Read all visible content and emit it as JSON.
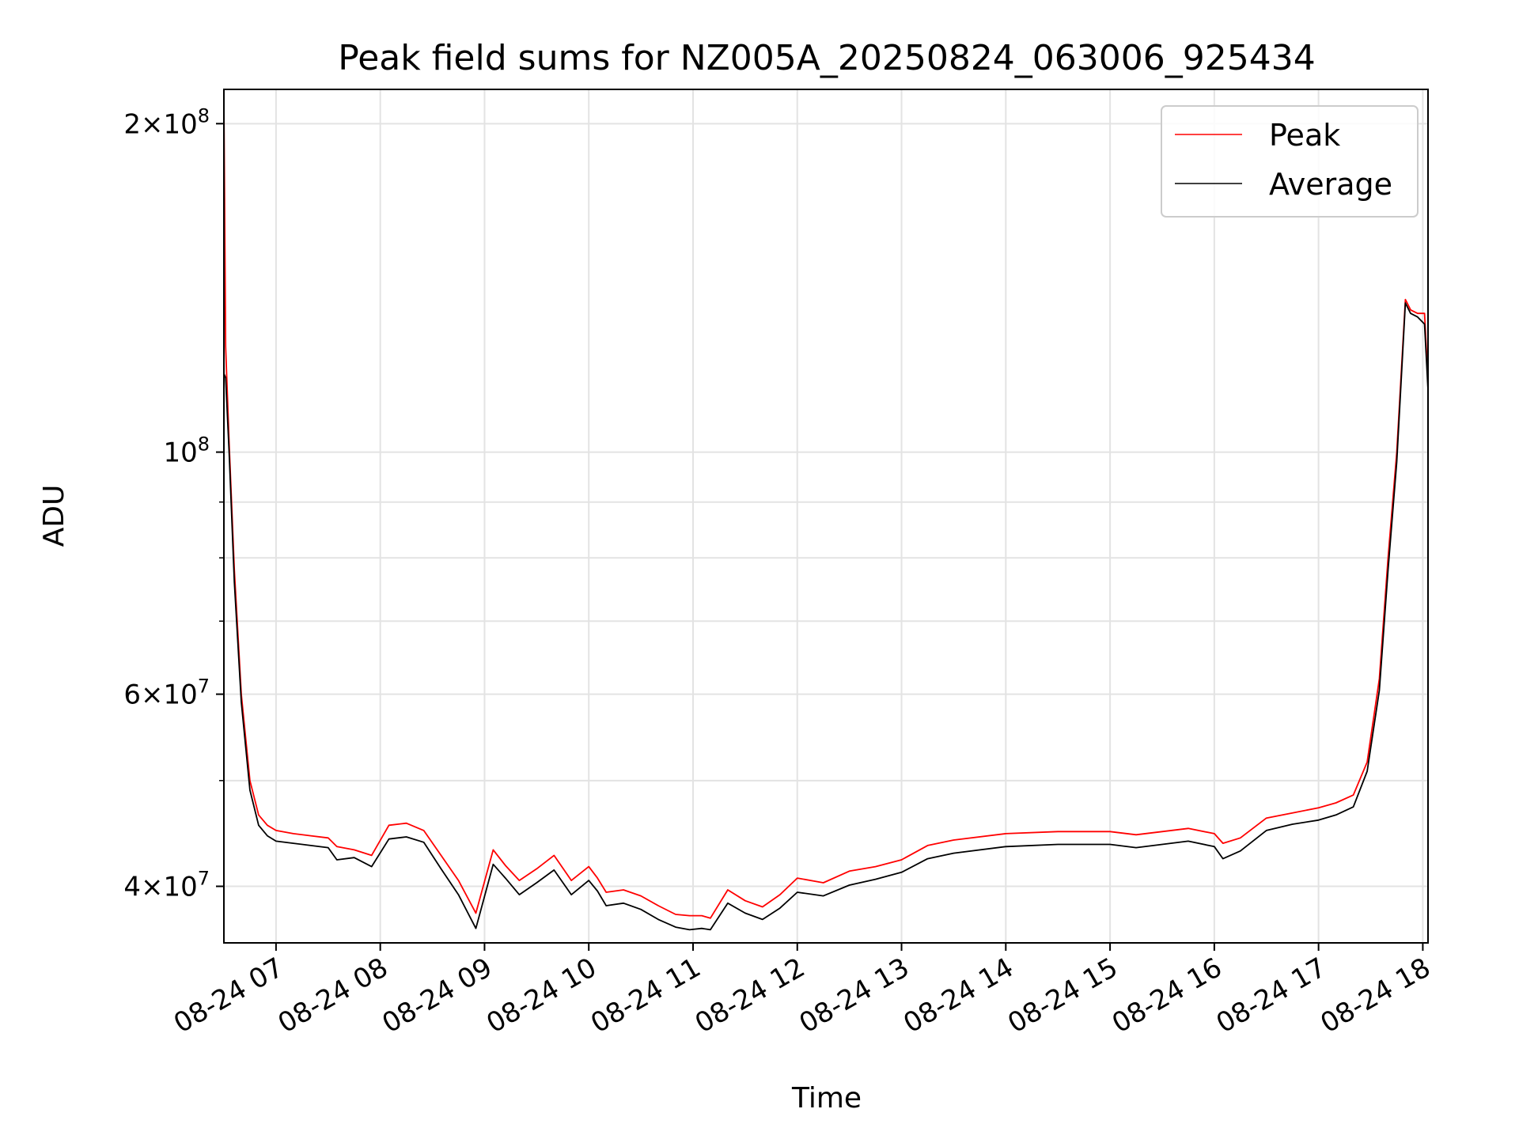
{
  "chart_data": {
    "type": "line",
    "title": "Peak field sums for NZ005A_20250824_063006_925434",
    "xlabel": "Time",
    "ylabel": "ADU",
    "yscale": "log",
    "grid": true,
    "legend_position": "top-right",
    "xlim": [
      "2025-08-24 06:30",
      "2025-08-24 18:03"
    ],
    "ylim": [
      35500000,
      215000000
    ],
    "x_ticks": [
      "08-24 07",
      "08-24 08",
      "08-24 09",
      "08-24 10",
      "08-24 11",
      "08-24 12",
      "08-24 13",
      "08-24 14",
      "08-24 15",
      "08-24 16",
      "08-24 17",
      "08-24 18"
    ],
    "y_ticks": [
      {
        "value": 200000000,
        "base": "2",
        "sup": "8",
        "mult": true
      },
      {
        "value": 100000000,
        "base": "10",
        "sup": "8",
        "mult": false
      },
      {
        "value": 60000000,
        "base": "6",
        "sup": "7",
        "mult": true
      },
      {
        "value": 40000000,
        "base": "4",
        "sup": "7",
        "mult": true
      }
    ],
    "y_minor_ticks": [
      50000000,
      70000000,
      80000000,
      90000000
    ],
    "series": [
      {
        "name": "Peak",
        "color": "#ff0000",
        "x": [
          "2025-08-24 06:30",
          "2025-08-24 06:31",
          "2025-08-24 06:33",
          "2025-08-24 06:36",
          "2025-08-24 06:40",
          "2025-08-24 06:45",
          "2025-08-24 06:50",
          "2025-08-24 06:55",
          "2025-08-24 07:00",
          "2025-08-24 07:10",
          "2025-08-24 07:20",
          "2025-08-24 07:30",
          "2025-08-24 07:35",
          "2025-08-24 07:45",
          "2025-08-24 07:55",
          "2025-08-24 08:05",
          "2025-08-24 08:15",
          "2025-08-24 08:25",
          "2025-08-24 08:35",
          "2025-08-24 08:45",
          "2025-08-24 08:55",
          "2025-08-24 09:05",
          "2025-08-24 09:12",
          "2025-08-24 09:20",
          "2025-08-24 09:30",
          "2025-08-24 09:40",
          "2025-08-24 09:50",
          "2025-08-24 10:00",
          "2025-08-24 10:05",
          "2025-08-24 10:10",
          "2025-08-24 10:20",
          "2025-08-24 10:30",
          "2025-08-24 10:40",
          "2025-08-24 10:50",
          "2025-08-24 10:58",
          "2025-08-24 11:05",
          "2025-08-24 11:10",
          "2025-08-24 11:20",
          "2025-08-24 11:30",
          "2025-08-24 11:40",
          "2025-08-24 11:50",
          "2025-08-24 12:00",
          "2025-08-24 12:15",
          "2025-08-24 12:30",
          "2025-08-24 12:45",
          "2025-08-24 13:00",
          "2025-08-24 13:15",
          "2025-08-24 13:30",
          "2025-08-24 14:00",
          "2025-08-24 14:30",
          "2025-08-24 15:00",
          "2025-08-24 15:15",
          "2025-08-24 15:30",
          "2025-08-24 15:45",
          "2025-08-24 16:00",
          "2025-08-24 16:05",
          "2025-08-24 16:15",
          "2025-08-24 16:30",
          "2025-08-24 16:45",
          "2025-08-24 17:00",
          "2025-08-24 17:10",
          "2025-08-24 17:20",
          "2025-08-24 17:28",
          "2025-08-24 17:35",
          "2025-08-24 17:40",
          "2025-08-24 17:45",
          "2025-08-24 17:50",
          "2025-08-24 17:53",
          "2025-08-24 17:57",
          "2025-08-24 18:01",
          "2025-08-24 18:03"
        ],
        "y": [
          210000000,
          125000000,
          102000000,
          78000000,
          60000000,
          50000000,
          46500000,
          45500000,
          45000000,
          44700000,
          44500000,
          44300000,
          43500000,
          43200000,
          42700000,
          45500000,
          45700000,
          45000000,
          42700000,
          40500000,
          37800000,
          43200000,
          41800000,
          40500000,
          41500000,
          42700000,
          40500000,
          41700000,
          40700000,
          39500000,
          39700000,
          39200000,
          38400000,
          37700000,
          37600000,
          37600000,
          37400000,
          39700000,
          38800000,
          38300000,
          39300000,
          40700000,
          40300000,
          41300000,
          41700000,
          42300000,
          43600000,
          44100000,
          44700000,
          44900000,
          44900000,
          44600000,
          44900000,
          45200000,
          44700000,
          43800000,
          44300000,
          46200000,
          46700000,
          47200000,
          47700000,
          48500000,
          52000000,
          62000000,
          80000000,
          100000000,
          138000000,
          135000000,
          134000000,
          134000000,
          116000000
        ]
      },
      {
        "name": "Average",
        "color": "#000000",
        "x": [
          "2025-08-24 06:30",
          "2025-08-24 06:31",
          "2025-08-24 06:33",
          "2025-08-24 06:36",
          "2025-08-24 06:40",
          "2025-08-24 06:45",
          "2025-08-24 06:50",
          "2025-08-24 06:55",
          "2025-08-24 07:00",
          "2025-08-24 07:10",
          "2025-08-24 07:20",
          "2025-08-24 07:30",
          "2025-08-24 07:35",
          "2025-08-24 07:45",
          "2025-08-24 07:55",
          "2025-08-24 08:05",
          "2025-08-24 08:15",
          "2025-08-24 08:25",
          "2025-08-24 08:35",
          "2025-08-24 08:45",
          "2025-08-24 08:55",
          "2025-08-24 09:05",
          "2025-08-24 09:12",
          "2025-08-24 09:20",
          "2025-08-24 09:30",
          "2025-08-24 09:40",
          "2025-08-24 09:50",
          "2025-08-24 10:00",
          "2025-08-24 10:05",
          "2025-08-24 10:10",
          "2025-08-24 10:20",
          "2025-08-24 10:30",
          "2025-08-24 10:40",
          "2025-08-24 10:50",
          "2025-08-24 10:58",
          "2025-08-24 11:05",
          "2025-08-24 11:10",
          "2025-08-24 11:20",
          "2025-08-24 11:30",
          "2025-08-24 11:40",
          "2025-08-24 11:50",
          "2025-08-24 12:00",
          "2025-08-24 12:15",
          "2025-08-24 12:30",
          "2025-08-24 12:45",
          "2025-08-24 13:00",
          "2025-08-24 13:15",
          "2025-08-24 13:30",
          "2025-08-24 14:00",
          "2025-08-24 14:30",
          "2025-08-24 15:00",
          "2025-08-24 15:15",
          "2025-08-24 15:30",
          "2025-08-24 15:45",
          "2025-08-24 16:00",
          "2025-08-24 16:05",
          "2025-08-24 16:15",
          "2025-08-24 16:30",
          "2025-08-24 16:45",
          "2025-08-24 17:00",
          "2025-08-24 17:10",
          "2025-08-24 17:20",
          "2025-08-24 17:28",
          "2025-08-24 17:35",
          "2025-08-24 17:40",
          "2025-08-24 17:45",
          "2025-08-24 17:50",
          "2025-08-24 17:53",
          "2025-08-24 17:57",
          "2025-08-24 18:01",
          "2025-08-24 18:03"
        ],
        "y": [
          118000000,
          117000000,
          100000000,
          76000000,
          59000000,
          49000000,
          45500000,
          44500000,
          44000000,
          43800000,
          43600000,
          43400000,
          42300000,
          42500000,
          41700000,
          44200000,
          44400000,
          43900000,
          41500000,
          39300000,
          36600000,
          41900000,
          40700000,
          39300000,
          40300000,
          41400000,
          39300000,
          40500000,
          39600000,
          38400000,
          38600000,
          38100000,
          37300000,
          36700000,
          36500000,
          36600000,
          36500000,
          38600000,
          37800000,
          37300000,
          38200000,
          39500000,
          39200000,
          40100000,
          40600000,
          41200000,
          42400000,
          42900000,
          43500000,
          43700000,
          43700000,
          43400000,
          43700000,
          44000000,
          43500000,
          42400000,
          43100000,
          45000000,
          45600000,
          46000000,
          46500000,
          47300000,
          51000000,
          60500000,
          78000000,
          98000000,
          137000000,
          134000000,
          133000000,
          131000000,
          114000000
        ]
      }
    ]
  }
}
